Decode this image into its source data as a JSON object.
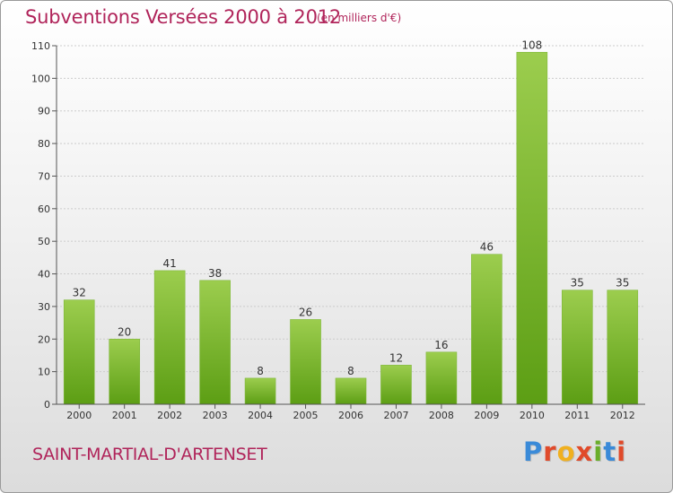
{
  "header": {
    "title": "Subventions Versées 2000 à 2012",
    "unit": "(en milliers d'€)"
  },
  "footer": {
    "city": "SAINT-MARTIAL-D'ARTENSET",
    "logo": "Proxiti",
    "logo_colors": [
      "#3a8ad8",
      "#e04a2a",
      "#f0b020",
      "#e04a2a",
      "#6aae2a",
      "#3a8ad8",
      "#e04a2a"
    ]
  },
  "colors": {
    "bar_top": "#9ccd4e",
    "bar_bottom": "#5c9e14",
    "grid": "#cccccc",
    "axis": "#555555",
    "text": "#333333"
  },
  "chart_data": {
    "type": "bar",
    "categories": [
      "2000",
      "2001",
      "2002",
      "2003",
      "2004",
      "2005",
      "2006",
      "2007",
      "2008",
      "2009",
      "2010",
      "2011",
      "2012"
    ],
    "values": [
      32,
      20,
      41,
      38,
      8,
      26,
      8,
      12,
      16,
      46,
      108,
      35,
      35
    ],
    "ylim": [
      0,
      110
    ],
    "yticks": [
      0,
      10,
      20,
      30,
      40,
      50,
      60,
      70,
      80,
      90,
      100,
      110
    ],
    "grid": true,
    "legend": "none"
  }
}
